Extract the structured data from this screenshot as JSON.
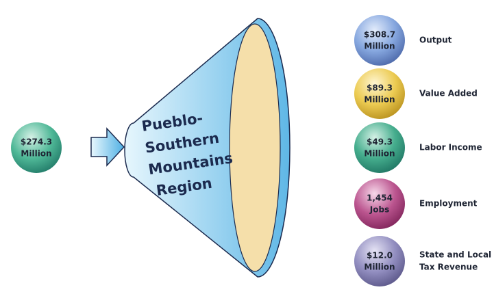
{
  "input": {
    "value": "$274.3",
    "unit": "Million"
  },
  "region": {
    "lines": [
      "Pueblo-",
      "Southern",
      "Mountains",
      "Region"
    ]
  },
  "outputs": [
    {
      "value": "$308.7",
      "unit": "Million",
      "label": [
        "Output"
      ]
    },
    {
      "value": "$89.3",
      "unit": "Million",
      "label": [
        "Value Added"
      ]
    },
    {
      "value": "$49.3",
      "unit": "Million",
      "label": [
        "Labor Income"
      ]
    },
    {
      "value": "1,454",
      "unit": "Jobs",
      "label": [
        "Employment"
      ]
    },
    {
      "value": "$12.0",
      "unit": "Million",
      "label": [
        "State and Local",
        "Tax Revenue"
      ]
    }
  ]
}
